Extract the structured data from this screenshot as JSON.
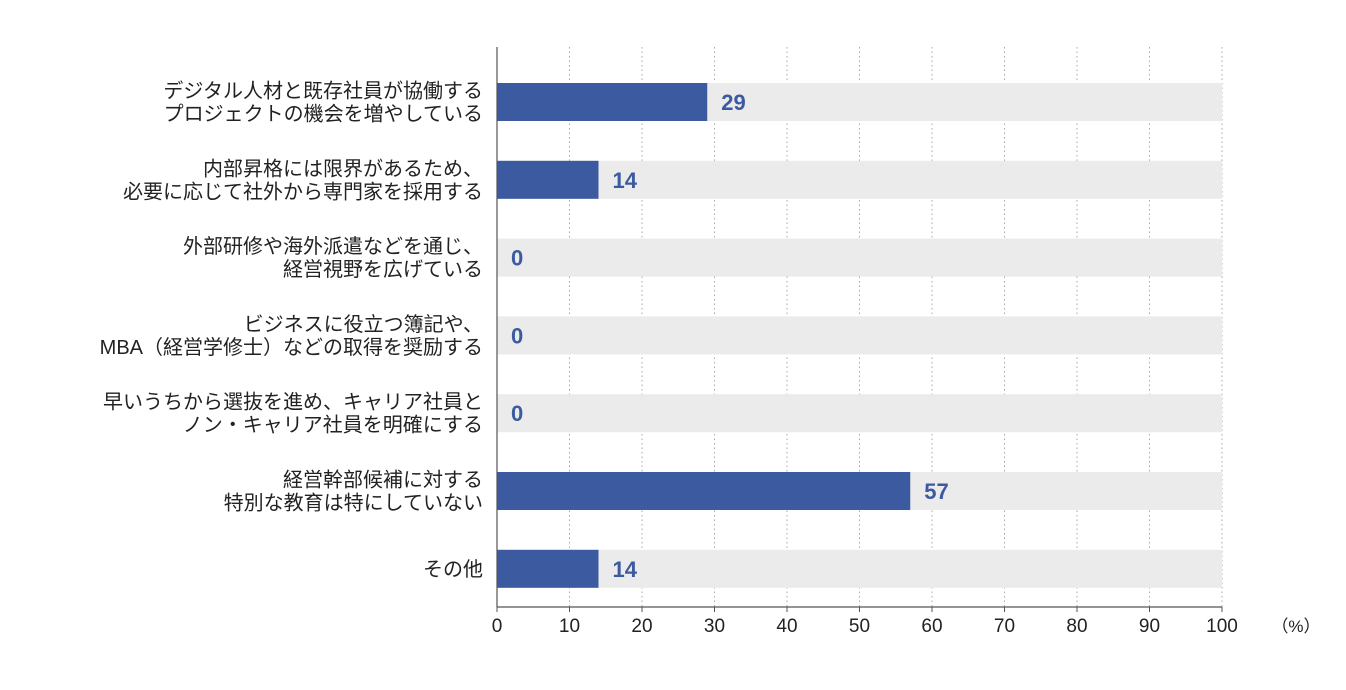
{
  "chart_data": {
    "type": "bar",
    "orientation": "horizontal",
    "categories": [
      [
        "デジタル人材と既存社員が協働する",
        "プロジェクトの機会を増やしている"
      ],
      [
        "内部昇格には限界があるため、",
        "必要に応じて社外から専門家を採用する"
      ],
      [
        "外部研修や海外派遣などを通じ、",
        "経営視野を広げている"
      ],
      [
        "ビジネスに役立つ簿記や、",
        "MBA（経営学修士）などの取得を奨励する"
      ],
      [
        "早いうちから選抜を進め、キャリア社員と",
        "ノン・キャリア社員を明確にする"
      ],
      [
        "経営幹部候補に対する",
        "特別な教育は特にしていない"
      ],
      [
        "その他"
      ]
    ],
    "values": [
      29,
      14,
      0,
      0,
      0,
      57,
      14
    ],
    "value_labels": [
      "29",
      "14",
      "0",
      "0",
      "0",
      "57",
      "14"
    ],
    "xlim": [
      0,
      100
    ],
    "xticks": [
      0,
      10,
      20,
      30,
      40,
      50,
      60,
      70,
      80,
      90,
      100
    ],
    "xtick_labels": [
      "0",
      "10",
      "20",
      "30",
      "40",
      "50",
      "60",
      "70",
      "80",
      "90",
      "100"
    ],
    "unit_label": "（%）",
    "grid": "vertical-dotted",
    "legend": "none",
    "colors": {
      "bar": "#3b5aa0",
      "track": "#ebebeb",
      "value_text": "#3b5aa0",
      "grid": "#a8a8a8",
      "axis": "#555555"
    }
  }
}
